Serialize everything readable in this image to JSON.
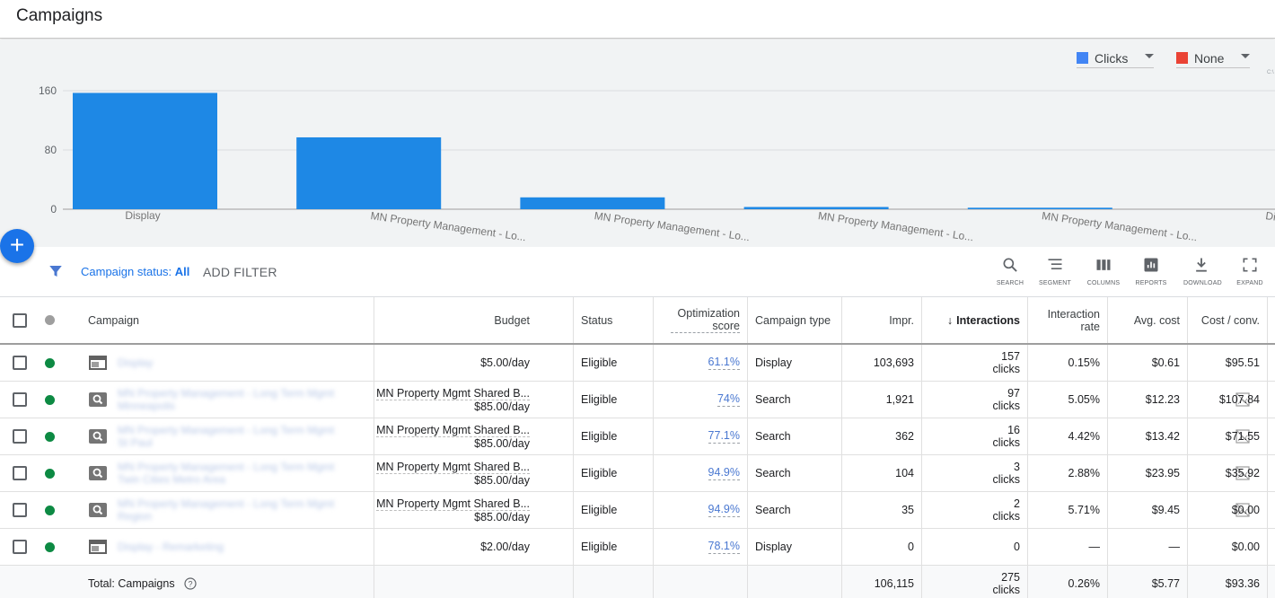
{
  "page": {
    "title": "Campaigns"
  },
  "chart_selectors": [
    {
      "label": "Clicks",
      "color": "#4285f4"
    },
    {
      "label": "None",
      "color": "#ea4335"
    }
  ],
  "chart_corner_mark": "C:\\",
  "chart_data": {
    "type": "bar",
    "categories": [
      "Display",
      "MN Property Management - Lo...",
      "MN Property Management - Lo...",
      "MN Property Management - Lo...",
      "MN Property Management - Lo...",
      "Di"
    ],
    "series": [
      {
        "name": "Clicks",
        "values": [
          157,
          97,
          16,
          3,
          2,
          0
        ]
      }
    ],
    "yticks": [
      0,
      80,
      160
    ],
    "ylim": [
      0,
      160
    ],
    "color": "#1e88e5"
  },
  "fab": {
    "label": "+"
  },
  "filterbar": {
    "status_label": "Campaign status:",
    "status_value": "All",
    "add_filter": "ADD FILTER",
    "tools": [
      {
        "label": "SEARCH",
        "icon": "search-icon"
      },
      {
        "label": "SEGMENT",
        "icon": "segment-icon"
      },
      {
        "label": "COLUMNS",
        "icon": "columns-icon"
      },
      {
        "label": "REPORTS",
        "icon": "reports-icon"
      },
      {
        "label": "DOWNLOAD",
        "icon": "download-icon"
      },
      {
        "label": "EXPAND",
        "icon": "expand-icon"
      }
    ]
  },
  "table": {
    "headers": {
      "campaign": "Campaign",
      "budget": "Budget",
      "status": "Status",
      "opt_line1": "Optimization",
      "opt_line2": "score",
      "type": "Campaign type",
      "impr": "Impr.",
      "interactions": "Interactions",
      "rate_line1": "Interaction",
      "rate_line2": "rate",
      "avg_cost": "Avg. cost",
      "cost_conv": "Cost / conv."
    },
    "rows": [
      {
        "icon": "display-campaign-icon",
        "name_l1": "Display",
        "name_l2": "",
        "budget_name": "",
        "budget": "$5.00/day",
        "status": "Eligible",
        "opt": "61.1%",
        "type": "Display",
        "impr": "103,693",
        "inter": "157",
        "inter_unit": "clicks",
        "rate": "0.15%",
        "avg_cost": "$0.61",
        "cost_conv": "$95.51"
      },
      {
        "icon": "search-campaign-icon",
        "name_l1": "MN Property Management - Long Term Mgmt",
        "name_l2": "Minneapolis",
        "budget_name": "MN Property Mgmt Shared B...",
        "budget": "$85.00/day",
        "status": "Eligible",
        "opt": "74%",
        "type": "Search",
        "impr": "1,921",
        "inter": "97",
        "inter_unit": "clicks",
        "rate": "5.05%",
        "avg_cost": "$12.23",
        "cost_conv": "$107.84"
      },
      {
        "icon": "search-campaign-icon",
        "name_l1": "MN Property Management - Long Term Mgmt",
        "name_l2": "St Paul",
        "budget_name": "MN Property Mgmt Shared B...",
        "budget": "$85.00/day",
        "status": "Eligible",
        "opt": "77.1%",
        "type": "Search",
        "impr": "362",
        "inter": "16",
        "inter_unit": "clicks",
        "rate": "4.42%",
        "avg_cost": "$13.42",
        "cost_conv": "$71.55"
      },
      {
        "icon": "search-campaign-icon",
        "name_l1": "MN Property Management - Long Term Mgmt",
        "name_l2": "Twin Cities Metro Area",
        "budget_name": "MN Property Mgmt Shared B...",
        "budget": "$85.00/day",
        "status": "Eligible",
        "opt": "94.9%",
        "type": "Search",
        "impr": "104",
        "inter": "3",
        "inter_unit": "clicks",
        "rate": "2.88%",
        "avg_cost": "$23.95",
        "cost_conv": "$35.92"
      },
      {
        "icon": "search-campaign-icon",
        "name_l1": "MN Property Management - Long Term Mgmt",
        "name_l2": "Region",
        "budget_name": "MN Property Mgmt Shared B...",
        "budget": "$85.00/day",
        "status": "Eligible",
        "opt": "94.9%",
        "type": "Search",
        "impr": "35",
        "inter": "2",
        "inter_unit": "clicks",
        "rate": "5.71%",
        "avg_cost": "$9.45",
        "cost_conv": "$0.00"
      },
      {
        "icon": "display-campaign-icon",
        "name_l1": "Display - Remarketing",
        "name_l2": "",
        "budget_name": "",
        "budget": "$2.00/day",
        "status": "Eligible",
        "opt": "78.1%",
        "type": "Display",
        "impr": "0",
        "inter": "0",
        "inter_unit": "",
        "rate": "—",
        "avg_cost": "—",
        "cost_conv": "$0.00"
      }
    ],
    "total": {
      "label": "Total: Campaigns",
      "impr": "106,115",
      "inter": "275",
      "inter_unit": "clicks",
      "rate": "0.26%",
      "avg_cost": "$5.77",
      "cost_conv": "$93.36"
    }
  }
}
